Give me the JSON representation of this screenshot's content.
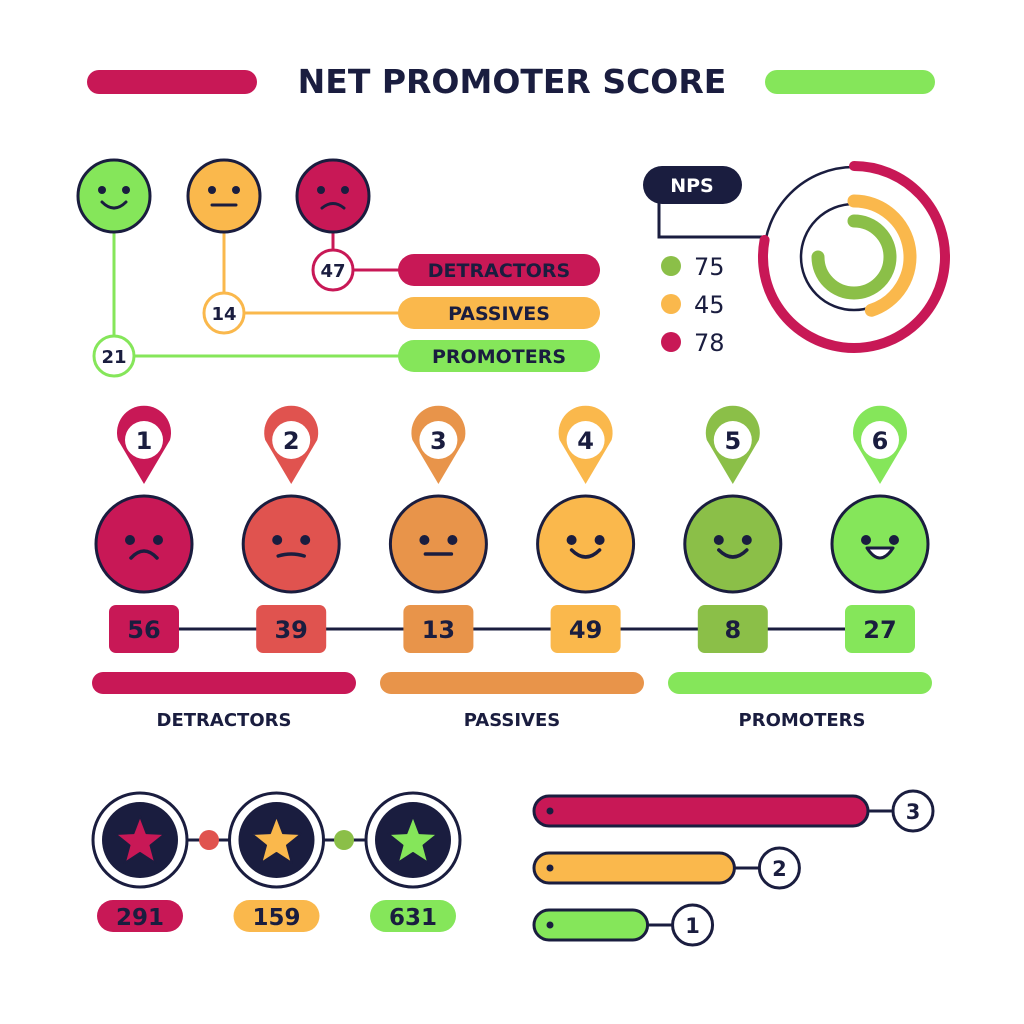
{
  "title": "NET PROMOTER SCORE",
  "colors": {
    "navy": "#1a1d3f",
    "detractor": "#c81856",
    "red": "#e0534f",
    "orange": "#e8944a",
    "yellow": "#fab84c",
    "green": "#8bbf48",
    "light_green": "#85e65a"
  },
  "legend_top": {
    "faces": [
      {
        "mood": "happy",
        "color": "#85e65a"
      },
      {
        "mood": "neutral",
        "color": "#fab84c"
      },
      {
        "mood": "sad",
        "color": "#c81856"
      }
    ],
    "rows": [
      {
        "label": "DETRACTORS",
        "value": "47",
        "color": "#c81856"
      },
      {
        "label": "PASSIVES",
        "value": "14",
        "color": "#fab84c"
      },
      {
        "label": "PROMOTERS",
        "value": "21",
        "color": "#85e65a"
      }
    ]
  },
  "nps": {
    "label": "NPS",
    "items": [
      {
        "value": "75",
        "color": "#8bbf48"
      },
      {
        "value": "45",
        "color": "#fab84c"
      },
      {
        "value": "78",
        "color": "#c81856"
      }
    ]
  },
  "scale": {
    "items": [
      {
        "number": "1",
        "value": "56",
        "mood": "sad",
        "color": "#c81856"
      },
      {
        "number": "2",
        "value": "39",
        "mood": "neutral-down",
        "color": "#e0534f"
      },
      {
        "number": "3",
        "value": "13",
        "mood": "neutral",
        "color": "#e8944a"
      },
      {
        "number": "4",
        "value": "49",
        "mood": "smile",
        "color": "#fab84c"
      },
      {
        "number": "5",
        "value": "8",
        "mood": "smile",
        "color": "#8bbf48"
      },
      {
        "number": "6",
        "value": "27",
        "mood": "grin",
        "color": "#85e65a"
      }
    ],
    "groups": [
      {
        "label": "DETRACTORS",
        "color": "#c81856"
      },
      {
        "label": "PASSIVES",
        "color": "#e8944a"
      },
      {
        "label": "PROMOTERS",
        "color": "#85e65a"
      }
    ]
  },
  "stars": [
    {
      "value": "291",
      "color": "#c81856"
    },
    {
      "value": "159",
      "color": "#fab84c"
    },
    {
      "value": "631",
      "color": "#85e65a"
    }
  ],
  "bars": [
    {
      "number": "3",
      "color": "#c81856",
      "fraction": 1.0
    },
    {
      "number": "2",
      "color": "#fab84c",
      "fraction": 0.6
    },
    {
      "number": "1",
      "color": "#85e65a",
      "fraction": 0.34
    }
  ]
}
